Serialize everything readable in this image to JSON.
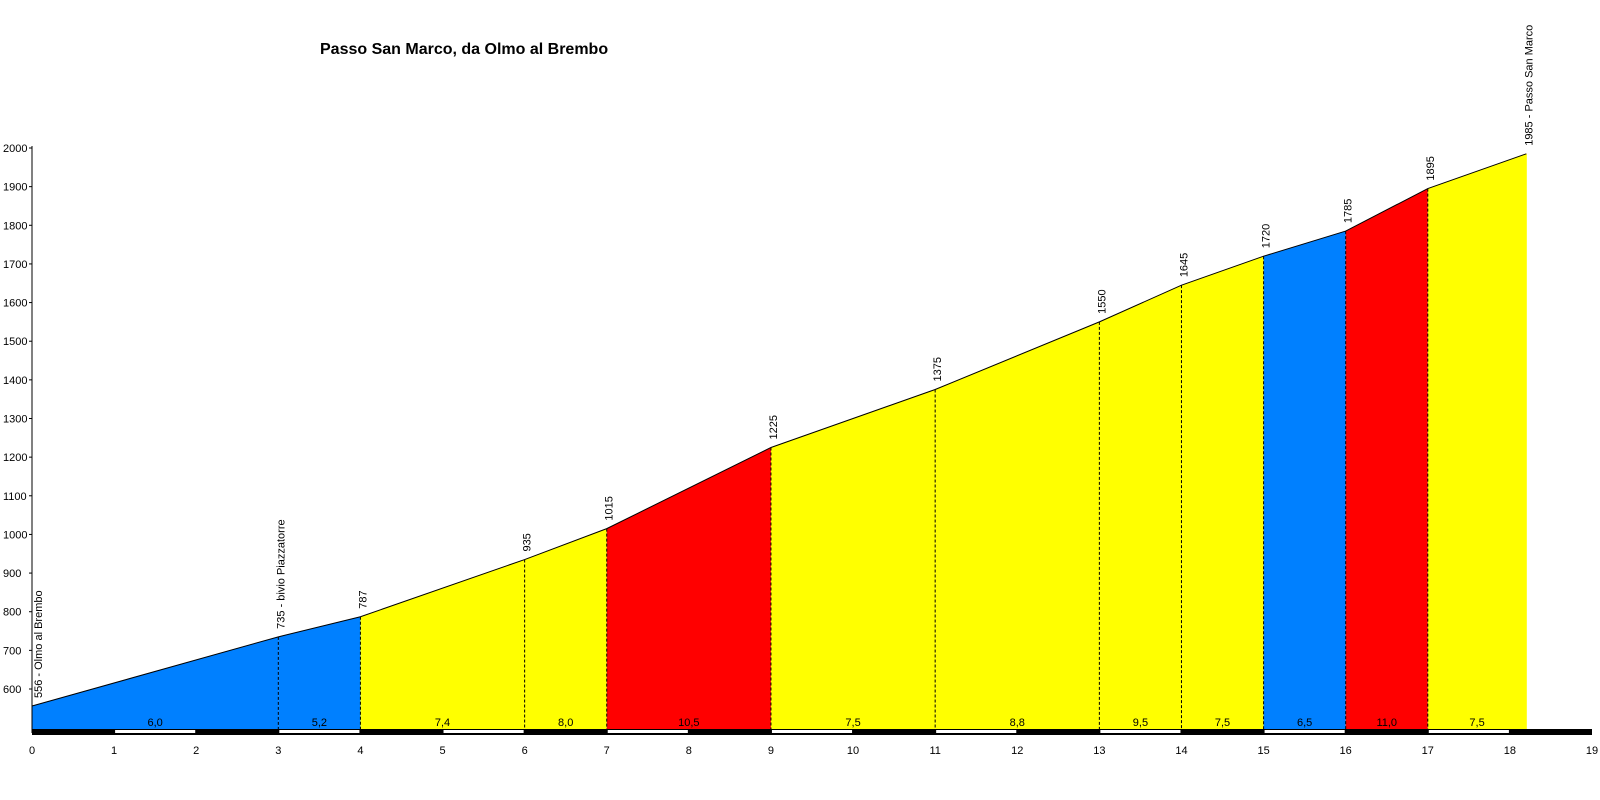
{
  "chart_data": {
    "type": "area",
    "title": "Passo San Marco, da Olmo al Brembo",
    "xlabel": "",
    "ylabel": "",
    "xlim": [
      0,
      19
    ],
    "ylim": [
      520,
      2000
    ],
    "x_ticks": [
      "0",
      "1",
      "2",
      "3",
      "4",
      "5",
      "6",
      "7",
      "8",
      "9",
      "10",
      "11",
      "12",
      "13",
      "14",
      "15",
      "16",
      "17",
      "18",
      "19"
    ],
    "y_ticks": [
      "600",
      "700",
      "800",
      "900",
      "1000",
      "1100",
      "1200",
      "1300",
      "1400",
      "1500",
      "1600",
      "1700",
      "1800",
      "1900",
      "2000"
    ],
    "grid": false,
    "legend": "none",
    "colors": {
      "blue": "#0080ff",
      "yellow": "#ffff00",
      "red": "#ff0000"
    },
    "points": [
      {
        "x": 0,
        "y": 556,
        "label": "556 - Olmo al Brembo"
      },
      {
        "x": 3,
        "y": 735,
        "label": "735 - bivio Piazzatorre"
      },
      {
        "x": 4,
        "y": 787,
        "label": "787"
      },
      {
        "x": 6,
        "y": 935,
        "label": "935"
      },
      {
        "x": 7,
        "y": 1015,
        "label": "1015"
      },
      {
        "x": 9,
        "y": 1225,
        "label": "1225"
      },
      {
        "x": 11,
        "y": 1375,
        "label": "1375"
      },
      {
        "x": 13,
        "y": 1550,
        "label": "1550"
      },
      {
        "x": 14,
        "y": 1645,
        "label": "1645"
      },
      {
        "x": 15,
        "y": 1720,
        "label": "1720"
      },
      {
        "x": 16,
        "y": 1785,
        "label": "1785"
      },
      {
        "x": 17,
        "y": 1895,
        "label": "1895"
      },
      {
        "x": 18.2,
        "y": 1985,
        "label": "1985 - Passo San Marco"
      }
    ],
    "segments": [
      {
        "from": 0,
        "to": 3,
        "gradient": "6,0",
        "color": "#0080ff"
      },
      {
        "from": 3,
        "to": 4,
        "gradient": "5,2",
        "color": "#0080ff"
      },
      {
        "from": 4,
        "to": 6,
        "gradient": "7,4",
        "color": "#ffff00"
      },
      {
        "from": 6,
        "to": 7,
        "gradient": "8,0",
        "color": "#ffff00"
      },
      {
        "from": 7,
        "to": 9,
        "gradient": "10,5",
        "color": "#ff0000"
      },
      {
        "from": 9,
        "to": 11,
        "gradient": "7,5",
        "color": "#ffff00"
      },
      {
        "from": 11,
        "to": 13,
        "gradient": "8,8",
        "color": "#ffff00"
      },
      {
        "from": 13,
        "to": 14,
        "gradient": "9,5",
        "color": "#ffff00"
      },
      {
        "from": 14,
        "to": 15,
        "gradient": "7,5",
        "color": "#ffff00"
      },
      {
        "from": 15,
        "to": 16,
        "gradient": "6,5",
        "color": "#0080ff"
      },
      {
        "from": 16,
        "to": 17,
        "gradient": "11,0",
        "color": "#ff0000"
      },
      {
        "from": 17,
        "to": 18.2,
        "gradient": "7,5",
        "color": "#ffff00"
      }
    ]
  }
}
